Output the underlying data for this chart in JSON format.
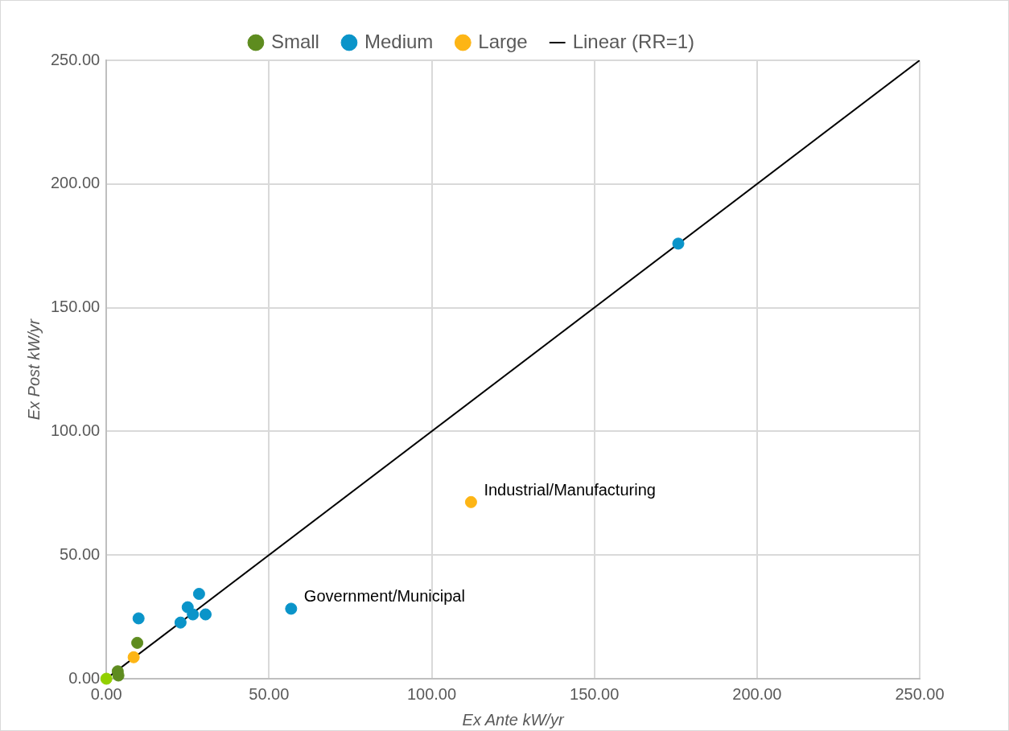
{
  "chart_data": {
    "type": "scatter",
    "xlabel": "Ex Ante kW/yr",
    "ylabel": "Ex Post kW/yr",
    "series": [
      {
        "name": "Small",
        "color": "#5e8c1f",
        "x": [
          3.5,
          3.7,
          9.5
        ],
        "values": [
          3.0,
          1.3,
          14.5
        ]
      },
      {
        "name": "Medium",
        "color": "#0a94c9",
        "x": [
          9.9,
          22.8,
          25.0,
          28.5,
          26.6,
          30.5,
          56.8,
          175.8
        ],
        "values": [
          24.4,
          22.7,
          28.9,
          34.3,
          26.0,
          26.0,
          28.3,
          175.9
        ]
      },
      {
        "name": "Large",
        "color": "#fdb515",
        "x": [
          8.4,
          112.1
        ],
        "values": [
          8.7,
          71.4
        ]
      },
      {
        "color": "#92d000",
        "x": [
          0
        ],
        "values": [
          0
        ]
      },
      {
        "name": "Linear (RR=1)",
        "type": "line",
        "marker": "none",
        "color": "#000000",
        "x": [
          0,
          250
        ],
        "values": [
          0,
          250
        ]
      }
    ],
    "annotations": [
      {
        "text": "Industrial/Manufacturing",
        "x": 112.1,
        "y": 71.4
      },
      {
        "text": "Government/Municipal",
        "x": 56.8,
        "y": 28.3
      }
    ],
    "xlim": [
      0,
      250
    ],
    "ylim": [
      0,
      250
    ],
    "xticks": [
      {
        "value": 0,
        "label": "0.00"
      },
      {
        "value": 50,
        "label": "50.00"
      },
      {
        "value": 100,
        "label": "100.00"
      },
      {
        "value": 150,
        "label": "150.00"
      },
      {
        "value": 200,
        "label": "200.00"
      },
      {
        "value": 250,
        "label": "250.00"
      }
    ],
    "yticks": [
      {
        "value": 0,
        "label": "0.00"
      },
      {
        "value": 50,
        "label": "50.00"
      },
      {
        "value": 100,
        "label": "100.00"
      },
      {
        "value": 150,
        "label": "150.00"
      },
      {
        "value": 200,
        "label": "200.00"
      },
      {
        "value": 250,
        "label": "250.00"
      }
    ],
    "grid": true,
    "legend": "top",
    "marker": "circle",
    "line_style": "solid"
  }
}
